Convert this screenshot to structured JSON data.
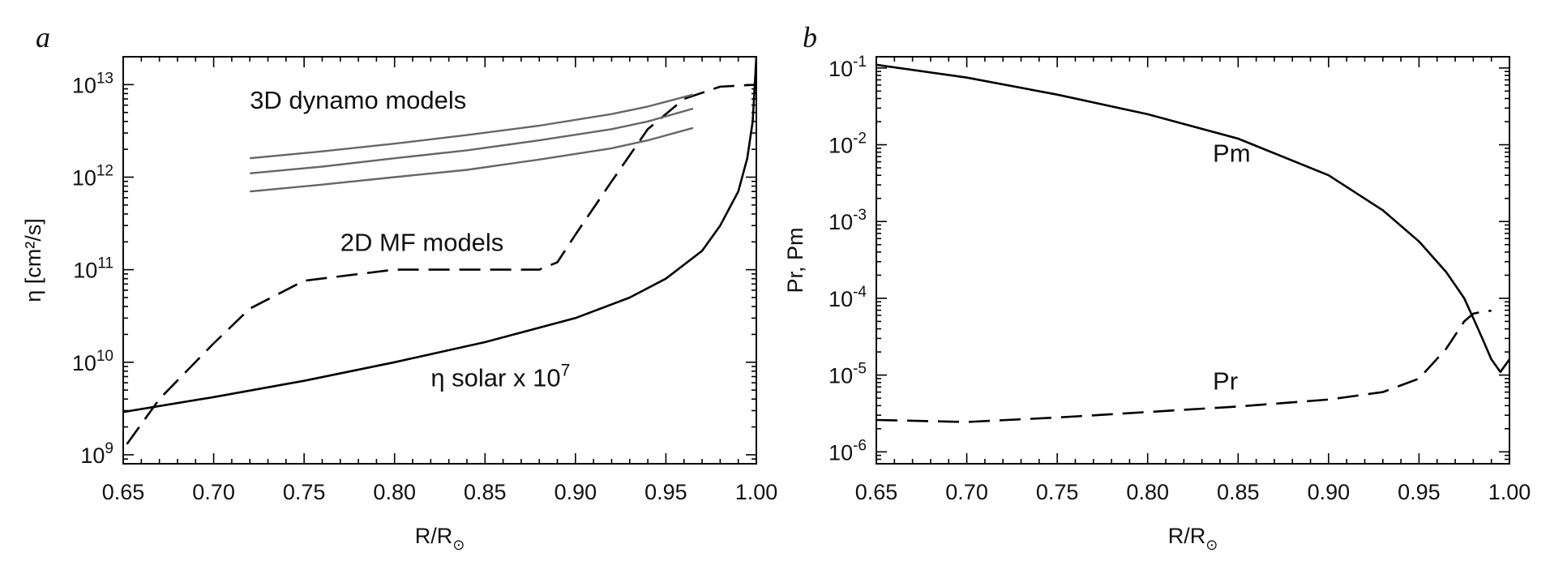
{
  "chart_data": [
    {
      "type": "line",
      "panel_label": "a",
      "xlabel": "R/R",
      "xlabel_sub": "⊙",
      "ylabel": "η [cm²/s]",
      "xlim": [
        0.65,
        1.0
      ],
      "ylim": [
        800000000.0,
        20000000000000.0
      ],
      "yscale": "log",
      "grid": false,
      "x_ticks": [
        "0.65",
        "0.70",
        "0.75",
        "0.80",
        "0.85",
        "0.90",
        "0.95",
        "1.00"
      ],
      "y_ticks": [
        {
          "base": "10",
          "exp": "9",
          "value": 1000000000.0
        },
        {
          "base": "10",
          "exp": "10",
          "value": 10000000000.0
        },
        {
          "base": "10",
          "exp": "11",
          "value": 100000000000.0
        },
        {
          "base": "10",
          "exp": "12",
          "value": 1000000000000.0
        },
        {
          "base": "10",
          "exp": "13",
          "value": 10000000000000.0
        }
      ],
      "series": [
        {
          "style": "solid",
          "color": "#000000",
          "x": [
            0.65,
            0.7,
            0.75,
            0.8,
            0.85,
            0.9,
            0.93,
            0.95,
            0.97,
            0.98,
            0.99,
            0.995,
            0.998,
            1.0
          ],
          "y": [
            2900000000.0,
            4200000000.0,
            6300000000.0,
            10000000000.0,
            16500000000.0,
            30000000000.0,
            50000000000.0,
            80000000000.0,
            160000000000.0,
            300000000000.0,
            700000000000.0,
            1600000000000.0,
            4000000000000.0,
            20000000000000.0
          ]
        },
        {
          "style": "dashed",
          "color": "#000000",
          "x": [
            0.652,
            0.67,
            0.7,
            0.72,
            0.75,
            0.8,
            0.85,
            0.88,
            0.89,
            0.9,
            0.92,
            0.94,
            0.96,
            0.98,
            1.0
          ],
          "y": [
            1300000000.0,
            4000000000.0,
            16000000000.0,
            38000000000.0,
            76000000000.0,
            100000000000.0,
            100000000000.0,
            100000000000.0,
            120000000000.0,
            240000000000.0,
            900000000000.0,
            3300000000000.0,
            7000000000000.0,
            9500000000000.0,
            10000000000000.0
          ]
        },
        {
          "style": "solid",
          "color": "#666666",
          "x": [
            0.72,
            0.76,
            0.8,
            0.84,
            0.88,
            0.92,
            0.94,
            0.965
          ],
          "y": [
            1600000000000.0,
            1900000000000.0,
            2300000000000.0,
            2850000000000.0,
            3600000000000.0,
            4800000000000.0,
            5800000000000.0,
            7800000000000.0
          ]
        },
        {
          "style": "solid",
          "color": "#666666",
          "x": [
            0.72,
            0.76,
            0.8,
            0.84,
            0.88,
            0.92,
            0.94,
            0.965
          ],
          "y": [
            1100000000000.0,
            1300000000000.0,
            1600000000000.0,
            1950000000000.0,
            2500000000000.0,
            3300000000000.0,
            4000000000000.0,
            5500000000000.0
          ]
        },
        {
          "style": "solid",
          "color": "#666666",
          "x": [
            0.72,
            0.76,
            0.8,
            0.84,
            0.88,
            0.92,
            0.94,
            0.965
          ],
          "y": [
            700000000000.0,
            830000000000.0,
            1000000000000.0,
            1200000000000.0,
            1550000000000.0,
            2050000000000.0,
            2500000000000.0,
            3400000000000.0
          ]
        }
      ],
      "annotations": [
        {
          "text": "3D dynamo models",
          "x": 0.72,
          "y": 5500000000000.0
        },
        {
          "text": "2D MF models",
          "x": 0.77,
          "y": 160000000000.0
        },
        {
          "text": "η solar x 10",
          "sup": "7",
          "x": 0.82,
          "y": 5500000000.0
        }
      ]
    },
    {
      "type": "line",
      "panel_label": "b",
      "xlabel": "R/R",
      "xlabel_sub": "⊙",
      "ylabel": "Pr, Pm",
      "xlim": [
        0.65,
        1.0
      ],
      "ylim": [
        7e-07,
        0.14
      ],
      "yscale": "log",
      "grid": false,
      "x_ticks": [
        "0.65",
        "0.70",
        "0.75",
        "0.80",
        "0.85",
        "0.90",
        "0.95",
        "1.00"
      ],
      "y_ticks": [
        {
          "base": "10",
          "exp": "-6",
          "value": 1e-06
        },
        {
          "base": "10",
          "exp": "-5",
          "value": 1e-05
        },
        {
          "base": "10",
          "exp": "-4",
          "value": 0.0001
        },
        {
          "base": "10",
          "exp": "-3",
          "value": 0.001
        },
        {
          "base": "10",
          "exp": "-2",
          "value": 0.01
        },
        {
          "base": "10",
          "exp": "-1",
          "value": 0.1
        }
      ],
      "series": [
        {
          "name": "Pm",
          "style": "solid",
          "color": "#000000",
          "x": [
            0.65,
            0.7,
            0.75,
            0.8,
            0.85,
            0.9,
            0.93,
            0.95,
            0.965,
            0.975,
            0.98,
            0.985,
            0.99,
            0.995,
            1.0
          ],
          "y": [
            0.11,
            0.075,
            0.045,
            0.025,
            0.012,
            0.004,
            0.0014,
            0.00055,
            0.00022,
            0.0001,
            5.5e-05,
            3e-05,
            1.6e-05,
            1.1e-05,
            1.6e-05
          ]
        },
        {
          "name": "Pr",
          "style": "dashed",
          "color": "#000000",
          "x": [
            0.65,
            0.7,
            0.75,
            0.8,
            0.85,
            0.9,
            0.93,
            0.95,
            0.965,
            0.975,
            0.98,
            0.985,
            0.99
          ],
          "y": [
            2.6e-06,
            2.45e-06,
            2.8e-06,
            3.3e-06,
            3.9e-06,
            4.8e-06,
            6e-06,
            9e-06,
            2.2e-05,
            5e-05,
            6.3e-05,
            6.7e-05,
            6.9e-05
          ]
        }
      ],
      "annotations": [
        {
          "text": "Pm",
          "x": 0.836,
          "y": 0.006
        },
        {
          "text": "Pr",
          "x": 0.836,
          "y": 6.5e-06
        }
      ]
    }
  ]
}
